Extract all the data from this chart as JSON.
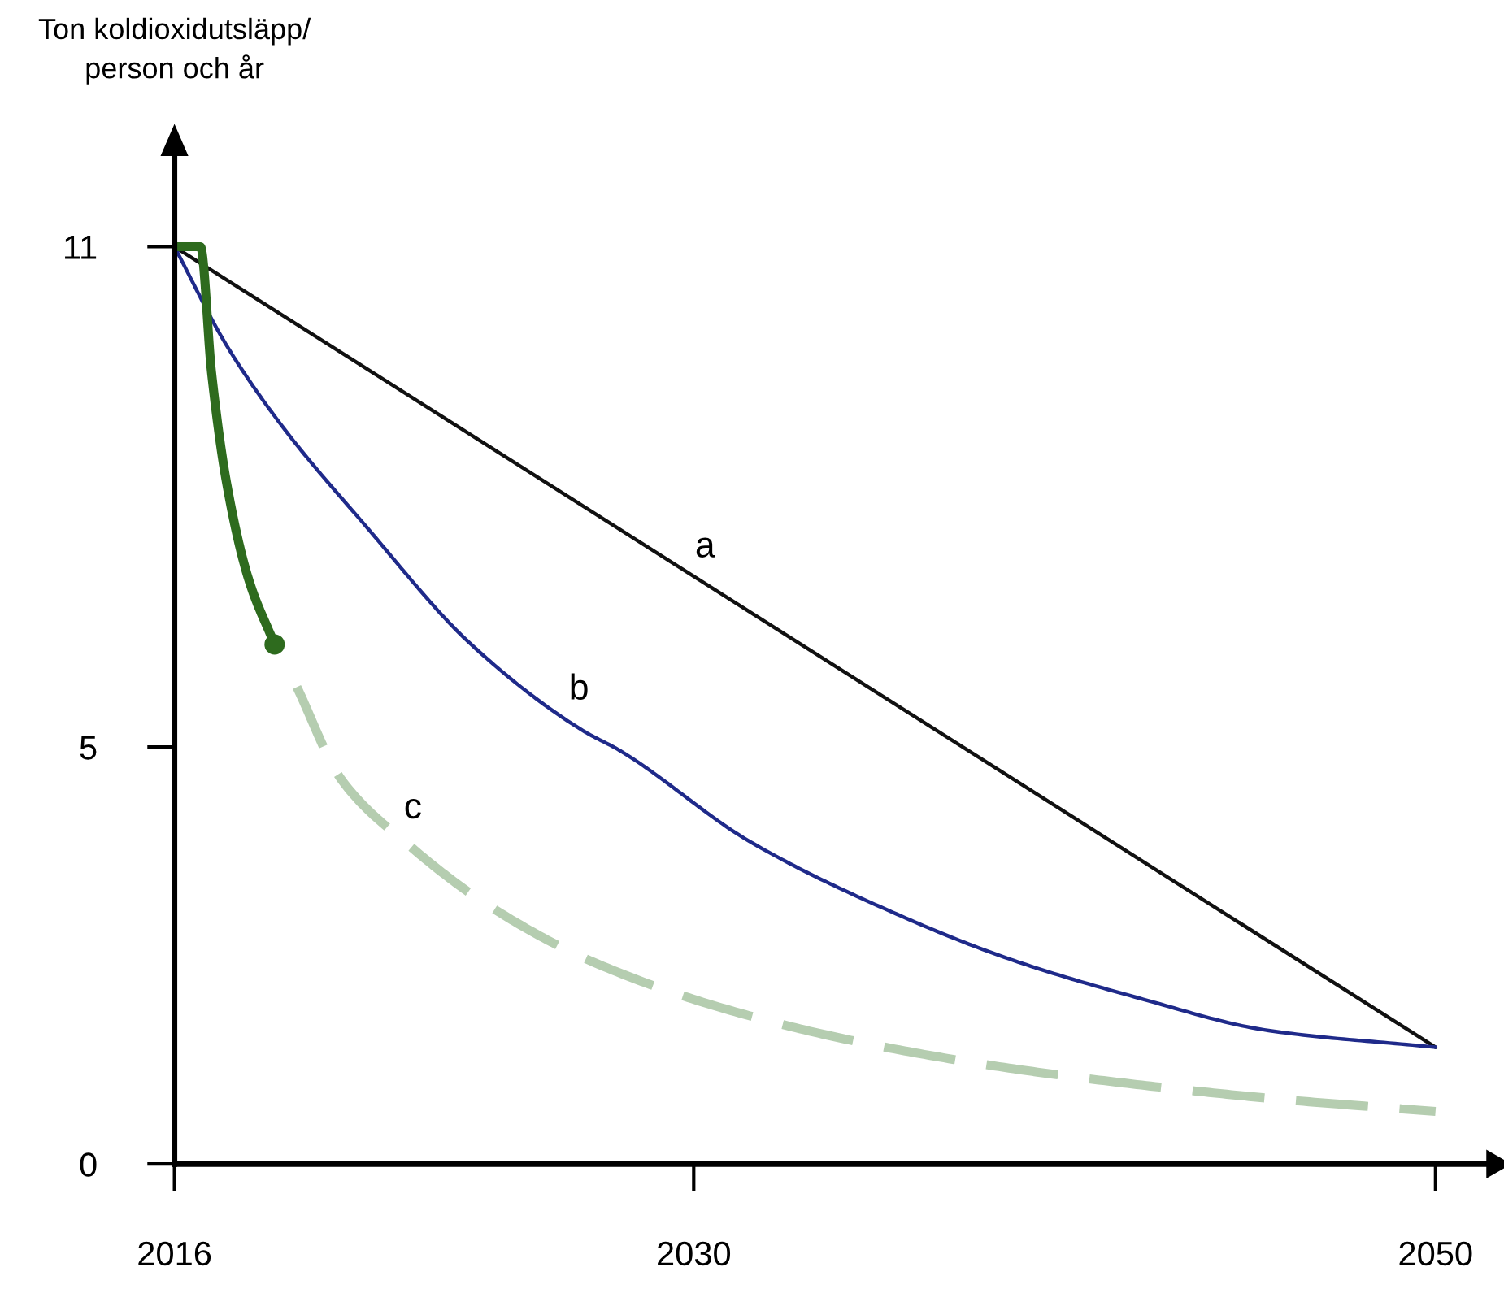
{
  "chart_data": {
    "type": "line",
    "ylabel": "Ton koldioxidutsläpp/\nperson och år",
    "xlim": [
      2016,
      2051.4
    ],
    "ylim": [
      0,
      12.1
    ],
    "xticks": [
      2016,
      2030,
      2050
    ],
    "yticks": [
      0,
      5,
      11
    ],
    "grid": false,
    "legend": false,
    "series": [
      {
        "name": "a",
        "color": "#111111",
        "x": [
          2016,
          2050
        ],
        "values": [
          11,
          1.4
        ],
        "line_style": "solid"
      },
      {
        "name": "b",
        "color": "#1f2a8a",
        "x": [
          2016,
          2017.4,
          2018.9,
          2021.1,
          2024.0,
          2027.0,
          2028.0,
          2031.5,
          2035.0,
          2038.5,
          2042.0,
          2045.5,
          2050
        ],
        "values": [
          11,
          9.82,
          8.85,
          7.68,
          6.23,
          5.2,
          4.96,
          3.87,
          3.09,
          2.46,
          1.99,
          1.6,
          1.4
        ],
        "line_style": "solid"
      },
      {
        "color": "#2e6b1e",
        "x": [
          2016,
          2016.7,
          2017.0,
          2017.4,
          2018.0,
          2018.7
        ],
        "values": [
          11,
          11,
          9.49,
          8.18,
          7.01,
          6.23
        ],
        "line_style": "solid"
      },
      {
        "type": "scatter",
        "color": "#2e6b1e",
        "x": [
          2018.7
        ],
        "values": [
          6.23
        ],
        "marker": "circle"
      },
      {
        "name": "c",
        "color": "#b5cdb0",
        "x": [
          2019.3,
          2020.5,
          2022.3,
          2024.5,
          2027.3,
          2031.0,
          2034.6,
          2038.5,
          2042.2,
          2045.7,
          2050
        ],
        "values": [
          5.72,
          4.61,
          3.83,
          3.09,
          2.42,
          1.84,
          1.45,
          1.15,
          0.94,
          0.78,
          0.63
        ],
        "line_style": "dashed"
      }
    ]
  }
}
